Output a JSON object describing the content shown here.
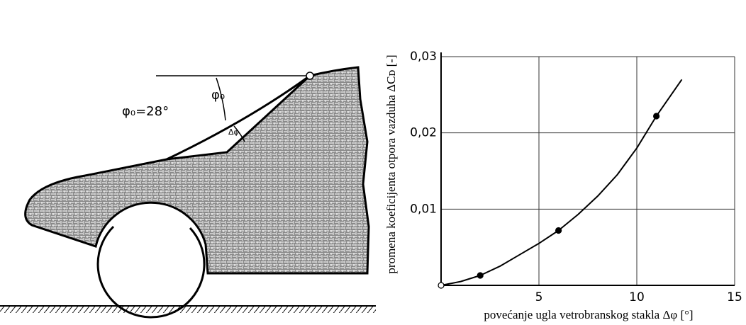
{
  "diagram": {
    "angle_label": "φ₀=28°",
    "phi_label": "φ₀",
    "delta_label": "Δφ"
  },
  "chart_data": {
    "type": "line",
    "x_label": "povećanje ugla vetrobranskog stakla Δφ [°]",
    "y_label": "promena koeficijenta otpora vazduha ΔCᴅ [-]",
    "xlim": [
      0,
      15
    ],
    "ylim": [
      0,
      0.03
    ],
    "xticks": [
      5,
      10,
      15
    ],
    "yticks": [
      {
        "value": 0.01,
        "label": "0,01"
      },
      {
        "value": 0.02,
        "label": "0,02"
      },
      {
        "value": 0.03,
        "label": "0,03"
      }
    ],
    "grid": true,
    "series": [
      {
        "color": "#000",
        "x": [
          0,
          1,
          2,
          3,
          4,
          5,
          6,
          7,
          8,
          9,
          10,
          11,
          12.3
        ],
        "values": [
          0,
          0.0005,
          0.0013,
          0.0025,
          0.004,
          0.0055,
          0.0072,
          0.0093,
          0.0117,
          0.0145,
          0.018,
          0.0222,
          0.027
        ]
      },
      {
        "color": "#000",
        "x": [
          0,
          2,
          6,
          11
        ],
        "values": [
          0,
          0.0013,
          0.0072,
          0.0222
        ],
        "marker_fill": [
          "#fff",
          "#000",
          "#000",
          "#000"
        ]
      }
    ]
  }
}
